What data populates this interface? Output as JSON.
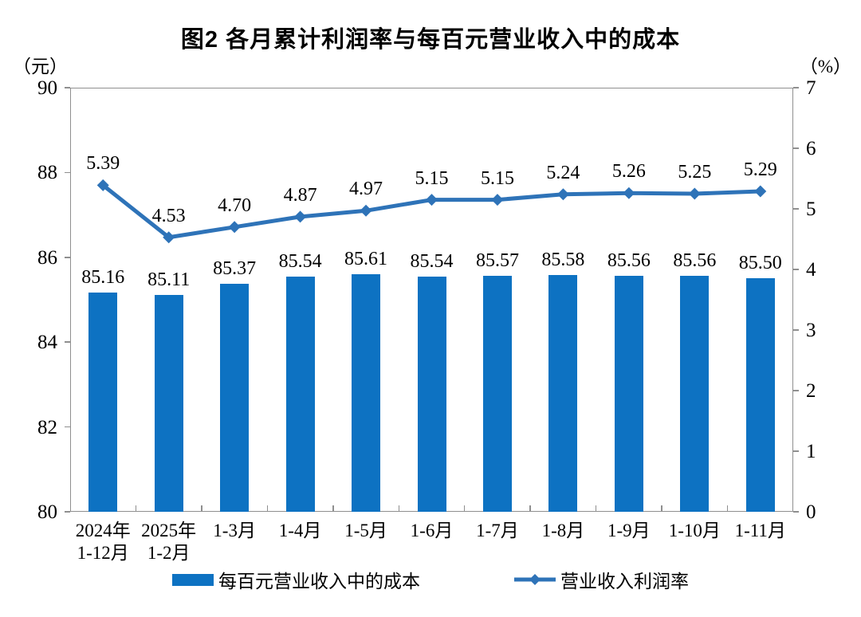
{
  "chart_data": {
    "type": "combo-bar-line",
    "title": "图2 各月累计利润率与每百元营业收入中的成本",
    "categories": [
      "2024年\n1-12月",
      "2025年\n1-2月",
      "1-3月",
      "1-4月",
      "1-5月",
      "1-6月",
      "1-7月",
      "1-8月",
      "1-9月",
      "1-10月",
      "1-11月"
    ],
    "series": [
      {
        "name": "每百元营业收入中的成本",
        "type": "bar",
        "axis": "left",
        "color": "#0d72c2",
        "values": [
          85.16,
          85.11,
          85.37,
          85.54,
          85.61,
          85.54,
          85.57,
          85.58,
          85.56,
          85.56,
          85.5
        ]
      },
      {
        "name": "营业收入利润率",
        "type": "line",
        "axis": "right",
        "color": "#2e73b8",
        "values": [
          5.39,
          4.53,
          4.7,
          4.87,
          4.97,
          5.15,
          5.15,
          5.24,
          5.26,
          5.25,
          5.29
        ]
      }
    ],
    "left_axis": {
      "unit": "（元）",
      "min": 80,
      "max": 90,
      "ticks": [
        90,
        88,
        86,
        84,
        82,
        80
      ]
    },
    "right_axis": {
      "unit": "（%）",
      "min": 0,
      "max": 7,
      "ticks": [
        7,
        6,
        5,
        4,
        3,
        2,
        1,
        0
      ]
    },
    "legend_position": "bottom",
    "grid": false,
    "value_label_decimals": 2
  }
}
